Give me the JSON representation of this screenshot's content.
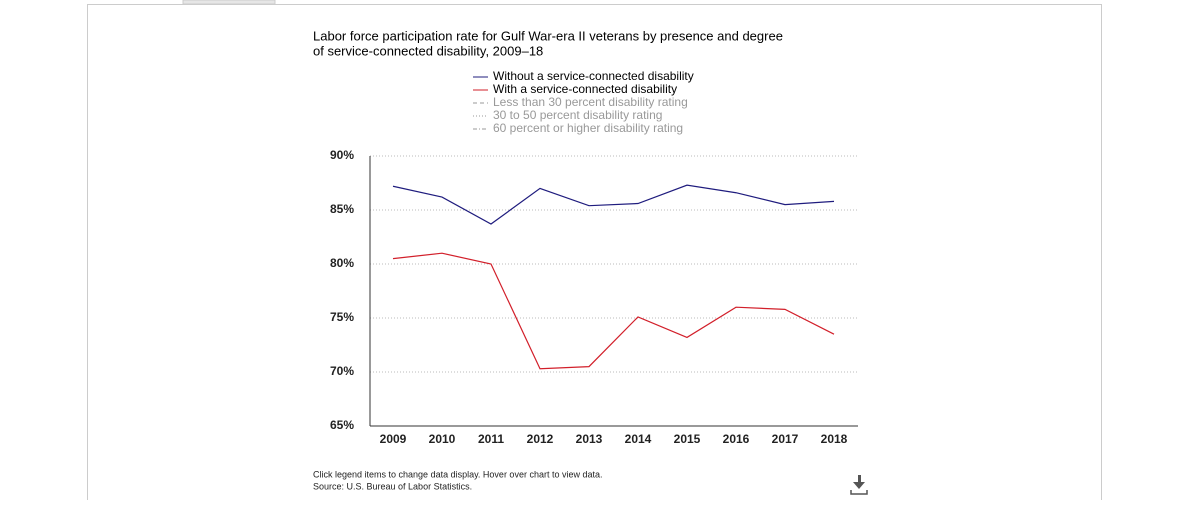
{
  "chart_data": {
    "type": "line",
    "title_lines": [
      "Labor force participation rate for Gulf War-era II veterans by presence and degree",
      "of service-connected disability, 2009–18"
    ],
    "categories": [
      "2009",
      "2010",
      "2011",
      "2012",
      "2013",
      "2014",
      "2015",
      "2016",
      "2017",
      "2018"
    ],
    "series": [
      {
        "name": "Without a service-connected disability",
        "color": "#1f1c7e",
        "dash": "solid",
        "visible": true,
        "values": [
          87.2,
          86.2,
          83.7,
          87.0,
          85.4,
          85.6,
          87.3,
          86.6,
          85.5,
          85.8
        ]
      },
      {
        "name": "With a service-connected disability",
        "color": "#d21f2a",
        "dash": "solid",
        "visible": true,
        "values": [
          80.5,
          81.0,
          80.0,
          70.3,
          70.5,
          75.1,
          73.2,
          76.0,
          75.8,
          73.5
        ]
      },
      {
        "name": "Less than 30 percent disability rating",
        "color": "#999999",
        "dash": "dashed",
        "visible": false
      },
      {
        "name": "30 to 50 percent disability rating",
        "color": "#999999",
        "dash": "dotted",
        "visible": false
      },
      {
        "name": "60 percent or higher disability rating",
        "color": "#999999",
        "dash": "dashdot",
        "visible": false
      }
    ],
    "ylim": [
      65,
      90
    ],
    "yticks": [
      {
        "value": 65,
        "label": "65%"
      },
      {
        "value": 70,
        "label": "70%"
      },
      {
        "value": 75,
        "label": "75%"
      },
      {
        "value": 80,
        "label": "80%"
      },
      {
        "value": 85,
        "label": "85%"
      },
      {
        "value": 90,
        "label": "90%"
      }
    ],
    "grid": true,
    "notes": [
      "Click legend items to change data display. Hover over chart to view data.",
      "Source: U.S. Bureau of Labor Statistics."
    ]
  }
}
